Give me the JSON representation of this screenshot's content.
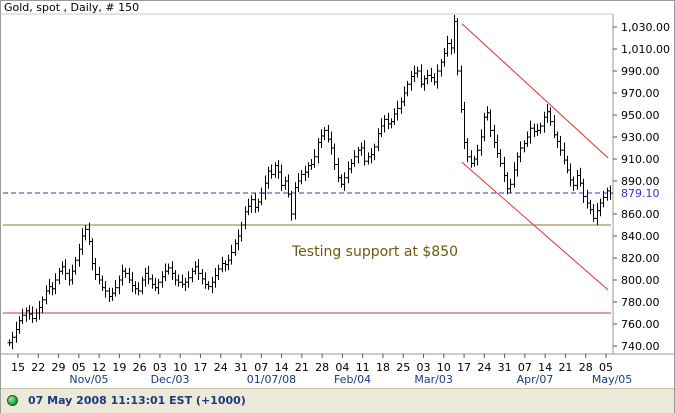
{
  "title": "Gold, spot , Daily, # 150",
  "status": {
    "text": "07 May 2008 11:13:01  EST (+1000)"
  },
  "chart_data": {
    "type": "line",
    "series_name": "Gold, spot",
    "y_ticks": [
      740,
      760,
      780,
      800,
      820,
      840,
      860,
      890,
      910,
      930,
      950,
      970,
      990,
      1010,
      1030
    ],
    "y_tick_labels": [
      "740.00",
      "760.00",
      "780.00",
      "800.00",
      "820.00",
      "840.00",
      "860.00",
      "890.00",
      "910.00",
      "930.00",
      "950.00",
      "970.00",
      "990.00",
      "1,010.00",
      "1,030.00"
    ],
    "x_tick_labels": [
      "15",
      "22",
      "29",
      "05",
      "12",
      "19",
      "26",
      "03",
      "10",
      "17",
      "24",
      "31",
      "07",
      "14",
      "21",
      "28",
      "04",
      "11",
      "18",
      "25",
      "03",
      "10",
      "17",
      "24",
      "31",
      "07",
      "14",
      "21",
      "28",
      "05"
    ],
    "month_labels": [
      "Nov/05",
      "Dec/03",
      "01/07/08",
      "Feb/04",
      "Mar/03",
      "Apr/07",
      "May/05"
    ],
    "last_price": {
      "value": 879.1,
      "label": "879.10",
      "color": "#3333cc"
    },
    "support_line": {
      "value": 850,
      "color": "#8a7a2a"
    },
    "lower_line": {
      "value": 770,
      "color": "#d03030"
    },
    "annotation": {
      "text": "Testing support at $850",
      "color": "#6b5a10"
    },
    "channel_color": "#e03030",
    "channel_upper": [
      {
        "x": "Mar/17",
        "y": 1033
      },
      {
        "x": "May/06",
        "y": 911
      }
    ],
    "channel_lower": [
      {
        "x": "Mar/17",
        "y": 907
      },
      {
        "x": "May/06",
        "y": 791
      }
    ],
    "bar_color": "#000000",
    "closes": [
      743,
      748,
      755,
      763,
      768,
      772,
      769,
      765,
      770,
      775,
      782,
      790,
      794,
      792,
      800,
      808,
      812,
      806,
      800,
      808,
      818,
      828,
      840,
      846,
      835,
      815,
      805,
      800,
      793,
      790,
      785,
      788,
      793,
      800,
      808,
      806,
      800,
      795,
      792,
      790,
      800,
      806,
      801,
      796,
      793,
      798,
      803,
      808,
      811,
      806,
      800,
      798,
      796,
      798,
      802,
      808,
      812,
      806,
      801,
      796,
      794,
      798,
      804,
      810,
      815,
      814,
      818,
      825,
      833,
      840,
      850,
      862,
      867,
      873,
      866,
      871,
      879,
      888,
      899,
      896,
      904,
      898,
      886,
      890,
      878,
      860,
      884,
      890,
      896,
      898,
      904,
      905,
      912,
      925,
      931,
      936,
      928,
      920,
      905,
      893,
      887,
      893,
      901,
      906,
      912,
      918,
      920,
      908,
      912,
      914,
      921,
      933,
      940,
      946,
      942,
      944,
      951,
      956,
      962,
      970,
      978,
      985,
      988,
      990,
      978,
      983,
      986,
      984,
      980,
      990,
      998,
      1006,
      1015,
      1011,
      1035,
      990,
      955,
      925,
      912,
      906,
      910,
      918,
      930,
      948,
      952,
      936,
      925,
      915,
      906,
      895,
      883,
      887,
      900,
      912,
      920,
      924,
      930,
      938,
      935,
      936,
      940,
      948,
      953,
      944,
      932,
      926,
      918,
      909,
      900,
      891,
      886,
      895,
      888,
      876,
      870,
      864,
      856,
      863,
      870,
      875,
      881,
      879
    ]
  }
}
